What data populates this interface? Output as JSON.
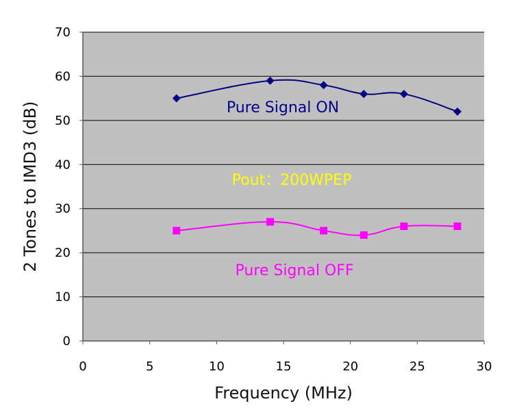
{
  "chart_data": {
    "type": "line",
    "title": "",
    "xlabel": "Frequency (MHz)",
    "ylabel": "2 Tones to IMD3 (dB)",
    "xlim": [
      0,
      30
    ],
    "ylim": [
      0,
      70
    ],
    "x_ticks": [
      0,
      5,
      10,
      15,
      20,
      25,
      30
    ],
    "y_ticks": [
      0,
      10,
      20,
      30,
      40,
      50,
      60,
      70
    ],
    "grid": "horizontal",
    "plot_background": "#c0c0c0",
    "x": [
      7,
      14,
      18,
      21,
      24,
      28
    ],
    "series": [
      {
        "values": [
          55,
          59,
          58,
          56,
          56,
          52
        ],
        "color": "#000080",
        "marker": "diamond"
      },
      {
        "values": [
          25,
          27,
          25,
          24,
          26,
          26
        ],
        "color": "#ff00ff",
        "marker": "square"
      }
    ],
    "annotations": [
      {
        "text": "Pure Signal ON",
        "color": "#00008b"
      },
      {
        "text": "Pout：200WPEP",
        "color": "#ffff00"
      },
      {
        "text": "Pure Signal OFF",
        "color": "#ff00ff"
      }
    ]
  }
}
